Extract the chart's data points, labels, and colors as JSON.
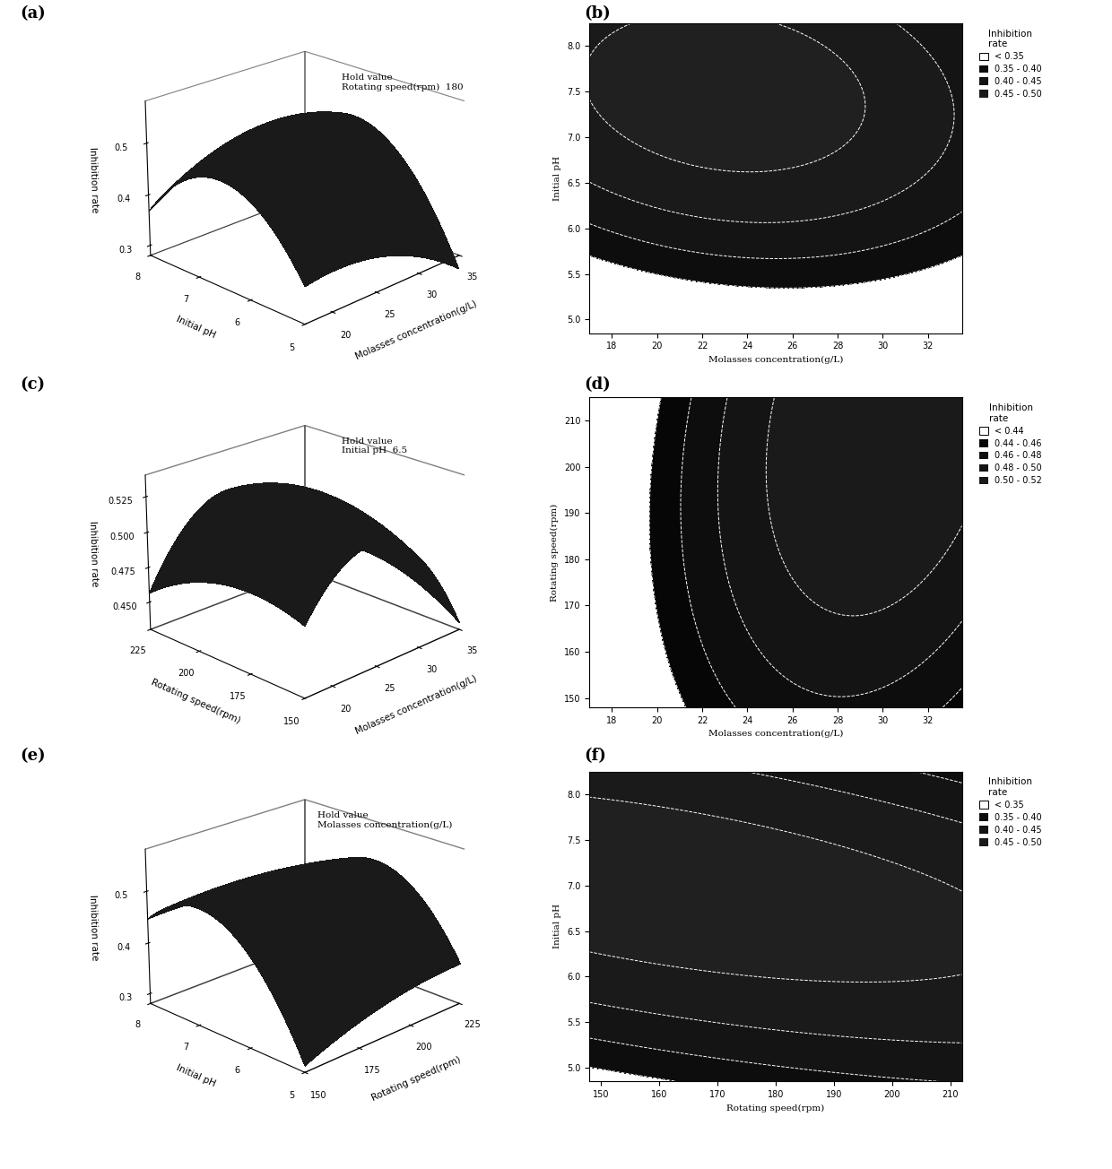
{
  "panel_labels": [
    "(a)",
    "(b)",
    "(c)",
    "(d)",
    "(e)",
    "(f)"
  ],
  "panel_a": {
    "xlabel": "Molasses concentration(g/L)",
    "ylabel": "Initial pH",
    "zlabel": "Inhibition rate",
    "hold_text": "Hold value\nRotating speed(rpm)  180",
    "zticks": [
      0.3,
      0.4,
      0.5
    ],
    "xticks": [
      20,
      25,
      30,
      35
    ],
    "yticks": [
      5,
      6,
      7,
      8
    ]
  },
  "panel_b": {
    "xlabel": "Molasses concentration(g/L)",
    "ylabel": "Initial pH",
    "legend_title": "Inhibition\nrate",
    "legend_labels": [
      "< 0.35",
      "0.35 - 0.40",
      "0.40 - 0.45",
      "0.45 - 0.50"
    ],
    "xticks": [
      18,
      20,
      22,
      24,
      26,
      28,
      30,
      32
    ],
    "yticks": [
      5.0,
      5.5,
      6.0,
      6.5,
      7.0,
      7.5,
      8.0
    ]
  },
  "panel_c": {
    "xlabel": "Molasses concentration(g/L)",
    "ylabel": "Rotating speed(rpm)",
    "zlabel": "Inhibition rate",
    "hold_text": "Hold value\nInitial pH  6.5",
    "zticks": [
      0.45,
      0.475,
      0.5,
      0.525
    ],
    "xticks": [
      20,
      25,
      30,
      35
    ],
    "yticks": [
      150,
      175,
      200,
      225
    ]
  },
  "panel_d": {
    "xlabel": "Molasses concentration(g/L)",
    "ylabel": "Rotating speed(rpm)",
    "legend_title": "Inhibition\nrate",
    "legend_labels": [
      "< 0.44",
      "0.44 - 0.46",
      "0.46 - 0.48",
      "0.48 - 0.50",
      "0.50 - 0.52"
    ],
    "xticks": [
      18,
      20,
      22,
      24,
      26,
      28,
      30,
      32
    ],
    "yticks": [
      150,
      160,
      170,
      180,
      190,
      200,
      210
    ]
  },
  "panel_e": {
    "xlabel": "Rotating speed(rpm)",
    "ylabel": "Initial pH",
    "zlabel": "Inhibition rate",
    "hold_text": "Hold value\nMolasses concentration(g/L)",
    "zticks": [
      0.3,
      0.4,
      0.5
    ],
    "xticks": [
      150,
      175,
      200,
      225
    ],
    "yticks": [
      5,
      6,
      7,
      8
    ]
  },
  "panel_f": {
    "xlabel": "Rotating speed(rpm)",
    "ylabel": "Initial pH",
    "legend_title": "Inhibition\nrate",
    "legend_labels": [
      "< 0.35",
      "0.35 - 0.40",
      "0.40 - 0.45",
      "0.45 - 0.50"
    ],
    "xticks": [
      150,
      160,
      170,
      180,
      190,
      200,
      210
    ],
    "yticks": [
      5.0,
      5.5,
      6.0,
      6.5,
      7.0,
      7.5,
      8.0
    ]
  }
}
